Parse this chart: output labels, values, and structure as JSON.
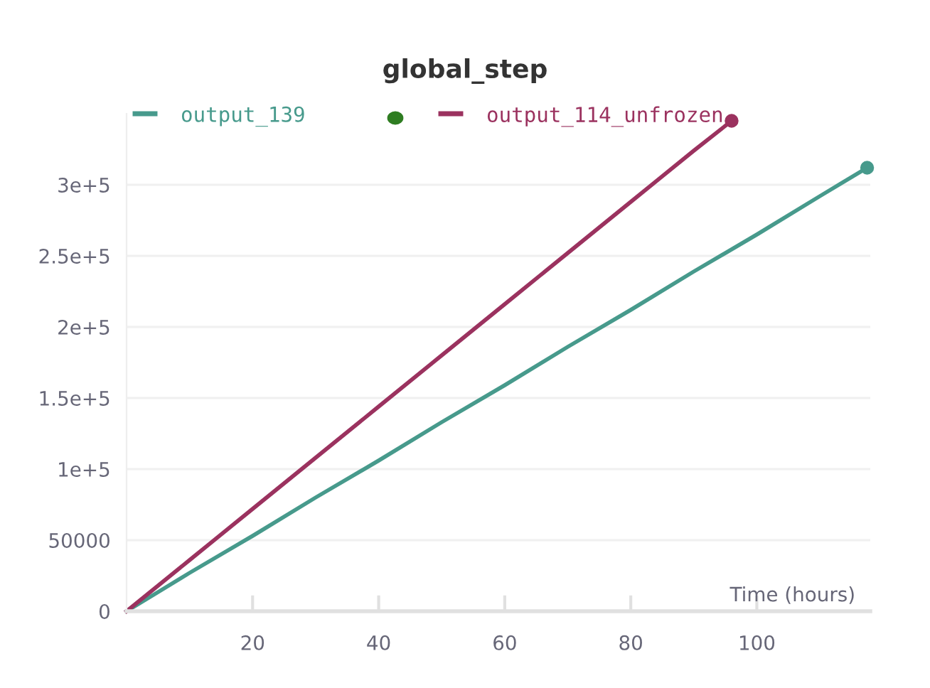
{
  "chart_data": {
    "type": "line",
    "title": "global_step",
    "xlabel": "Time (hours)",
    "series": [
      {
        "name": "output_139",
        "color": "#479a8c",
        "x": [
          0,
          10,
          20,
          30,
          40,
          50,
          60,
          70,
          80,
          90,
          100,
          110,
          117.5
        ],
        "values": [
          0,
          27000,
          53000,
          80000,
          106000,
          133000,
          159000,
          186000,
          212000,
          239000,
          265000,
          292000,
          312000
        ]
      },
      {
        "name": "output_114_unfrozen",
        "color": "#9b325f",
        "x": [
          0,
          10,
          20,
          30,
          40,
          50,
          60,
          70,
          80,
          90,
          96
        ],
        "values": [
          0,
          36000,
          72000,
          108000,
          144000,
          180000,
          216000,
          252000,
          288000,
          324000,
          345000
        ]
      }
    ],
    "xlim": [
      0,
      118
    ],
    "xticks": [
      20,
      40,
      60,
      80,
      100
    ],
    "ylim": [
      0,
      350000
    ],
    "yticks": [
      0,
      50000,
      {
        "value": 100000,
        "label": "1e+5"
      },
      {
        "value": 150000,
        "label": "1.5e+5"
      },
      {
        "value": 200000,
        "label": "2e+5"
      },
      {
        "value": 250000,
        "label": "2.5e+5"
      },
      {
        "value": 300000,
        "label": "3e+5"
      }
    ],
    "grid": "y",
    "legend": "top",
    "line_style": "solid"
  }
}
